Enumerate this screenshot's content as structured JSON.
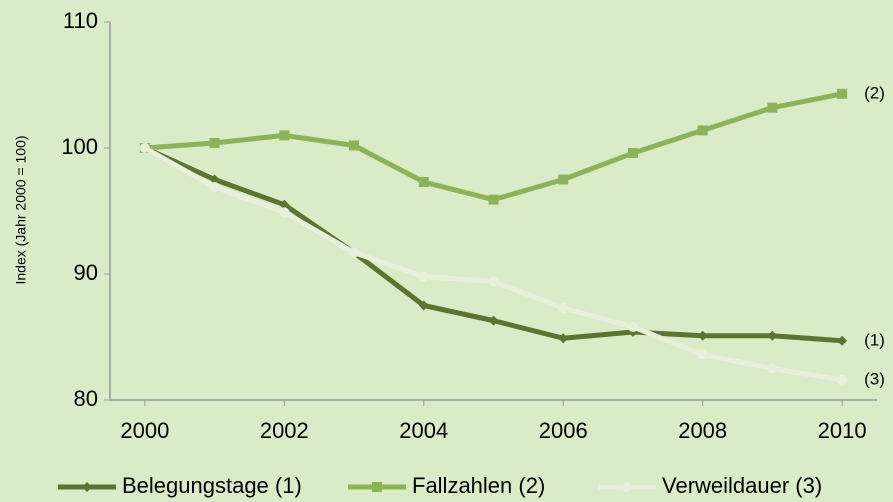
{
  "chart_data": {
    "type": "line",
    "y_label": "Index (Jahr 2000 = 100)",
    "x": [
      2000,
      2001,
      2002,
      2003,
      2004,
      2005,
      2006,
      2007,
      2008,
      2009,
      2010
    ],
    "series": [
      {
        "name": "Belegungstage (1)",
        "color": "#5b7430",
        "marker": "diamond",
        "end_label": "(1)",
        "values": [
          100,
          97.5,
          95.5,
          91.7,
          87.5,
          86.3,
          84.9,
          85.4,
          85.1,
          85.1,
          84.7
        ]
      },
      {
        "name": "Fallzahlen (2)",
        "color": "#8cb25a",
        "marker": "square",
        "end_label": "(2)",
        "values": [
          100,
          100.4,
          101.0,
          100.2,
          97.3,
          95.9,
          97.5,
          99.6,
          101.4,
          103.2,
          104.3
        ]
      },
      {
        "name": "Verweildauer (3)",
        "color": "#e8f0dc",
        "marker": "circle",
        "end_label": "(3)",
        "values": [
          100,
          96.9,
          94.9,
          91.7,
          89.8,
          89.4,
          87.3,
          85.8,
          83.6,
          82.5,
          81.6
        ]
      }
    ],
    "xlim": [
      1999.5,
      2010.5
    ],
    "xticks": [
      2000,
      2002,
      2004,
      2006,
      2008,
      2010
    ],
    "ylim": [
      80,
      110
    ],
    "yticks": [
      80,
      90,
      100,
      110
    ],
    "grid": false,
    "legend": "bottom"
  }
}
